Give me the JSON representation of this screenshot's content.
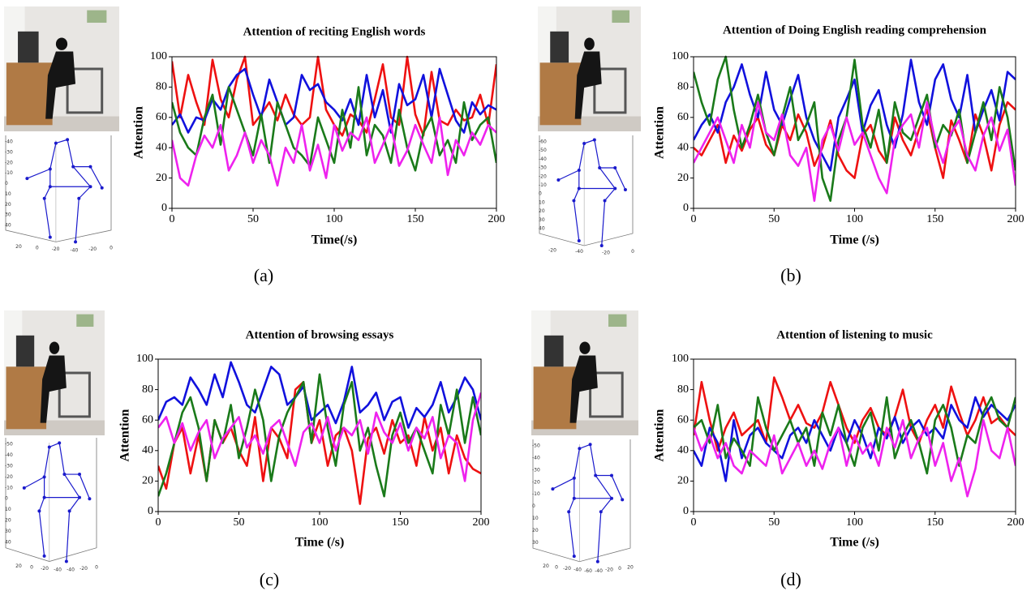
{
  "chart_data": [
    {
      "type": "line",
      "title": "Attention of reciting English words",
      "xlabel": "Time(/s)",
      "ylabel": "Attention",
      "x": [
        0,
        5,
        10,
        15,
        20,
        25,
        30,
        35,
        40,
        45,
        50,
        55,
        60,
        65,
        70,
        75,
        80,
        85,
        90,
        95,
        100,
        105,
        110,
        115,
        120,
        125,
        130,
        135,
        140,
        145,
        150,
        155,
        160,
        165,
        170,
        175,
        180,
        185,
        190,
        195,
        200
      ],
      "xlim": [
        0,
        200
      ],
      "ylim": [
        0,
        100
      ],
      "xticks": [
        0,
        50,
        100,
        150,
        200
      ],
      "yticks": [
        0,
        20,
        40,
        60,
        80,
        100
      ],
      "series": [
        {
          "color": "#ee1111",
          "values": [
            97,
            60,
            88,
            70,
            55,
            98,
            72,
            60,
            85,
            100,
            55,
            62,
            70,
            58,
            75,
            62,
            55,
            60,
            100,
            65,
            55,
            48,
            62,
            58,
            50,
            72,
            95,
            60,
            55,
            100,
            62,
            48,
            90,
            58,
            55,
            65,
            58,
            60,
            75,
            55,
            95
          ]
        },
        {
          "color": "#1111dd",
          "values": [
            55,
            62,
            50,
            60,
            58,
            72,
            65,
            80,
            88,
            92,
            75,
            60,
            85,
            70,
            55,
            60,
            88,
            78,
            82,
            70,
            65,
            58,
            72,
            55,
            88,
            60,
            78,
            50,
            82,
            68,
            72,
            88,
            60,
            92,
            75,
            58,
            50,
            70,
            62,
            68,
            65
          ]
        },
        {
          "color": "#1a7a1a",
          "values": [
            70,
            50,
            40,
            35,
            60,
            75,
            42,
            80,
            65,
            50,
            35,
            62,
            30,
            70,
            55,
            40,
            35,
            28,
            60,
            45,
            30,
            65,
            40,
            80,
            35,
            55,
            48,
            30,
            65,
            40,
            25,
            50,
            60,
            35,
            45,
            30,
            70,
            45,
            55,
            60,
            30
          ]
        },
        {
          "color": "#ee22ee",
          "values": [
            45,
            20,
            15,
            35,
            48,
            40,
            55,
            25,
            35,
            50,
            30,
            45,
            35,
            15,
            40,
            30,
            55,
            25,
            42,
            20,
            55,
            38,
            50,
            45,
            60,
            30,
            42,
            55,
            28,
            38,
            55,
            42,
            30,
            60,
            22,
            45,
            35,
            50,
            42,
            55,
            50
          ]
        }
      ]
    },
    {
      "type": "line",
      "title": "Attention of Doing English reading comprehension",
      "xlabel": "Time (/s)",
      "ylabel": "Attention",
      "x": [
        0,
        5,
        10,
        15,
        20,
        25,
        30,
        35,
        40,
        45,
        50,
        55,
        60,
        65,
        70,
        75,
        80,
        85,
        90,
        95,
        100,
        105,
        110,
        115,
        120,
        125,
        130,
        135,
        140,
        145,
        150,
        155,
        160,
        165,
        170,
        175,
        180,
        185,
        190,
        195,
        200
      ],
      "xlim": [
        0,
        200
      ],
      "ylim": [
        0,
        100
      ],
      "xticks": [
        0,
        50,
        100,
        150,
        200
      ],
      "yticks": [
        0,
        20,
        40,
        60,
        80,
        100
      ],
      "series": [
        {
          "color": "#ee1111",
          "values": [
            40,
            35,
            45,
            55,
            30,
            48,
            38,
            52,
            60,
            42,
            35,
            55,
            45,
            62,
            50,
            28,
            40,
            58,
            35,
            25,
            20,
            48,
            55,
            38,
            30,
            60,
            45,
            35,
            52,
            65,
            40,
            20,
            58,
            45,
            30,
            62,
            48,
            25,
            55,
            70,
            65
          ]
        },
        {
          "color": "#1111dd",
          "values": [
            45,
            55,
            62,
            50,
            70,
            80,
            95,
            75,
            60,
            90,
            65,
            55,
            72,
            88,
            60,
            45,
            35,
            25,
            60,
            72,
            85,
            50,
            68,
            78,
            55,
            40,
            62,
            98,
            70,
            55,
            85,
            95,
            72,
            60,
            88,
            50,
            65,
            78,
            58,
            90,
            85
          ]
        },
        {
          "color": "#1a7a1a",
          "values": [
            90,
            70,
            55,
            85,
            100,
            65,
            40,
            55,
            75,
            50,
            35,
            60,
            80,
            45,
            55,
            70,
            20,
            5,
            45,
            60,
            98,
            55,
            40,
            65,
            30,
            70,
            50,
            45,
            60,
            75,
            40,
            55,
            48,
            65,
            30,
            50,
            70,
            45,
            80,
            60,
            25
          ]
        },
        {
          "color": "#ee22ee",
          "values": [
            30,
            40,
            50,
            60,
            45,
            30,
            55,
            40,
            70,
            50,
            45,
            62,
            35,
            28,
            40,
            5,
            45,
            55,
            38,
            60,
            42,
            50,
            35,
            20,
            10,
            45,
            55,
            62,
            40,
            70,
            45,
            30,
            50,
            58,
            35,
            25,
            48,
            60,
            38,
            52,
            15
          ]
        }
      ]
    },
    {
      "type": "line",
      "title": "Attention of browsing essays",
      "xlabel": "Time (/s)",
      "ylabel": "Attention",
      "x": [
        0,
        5,
        10,
        15,
        20,
        25,
        30,
        35,
        40,
        45,
        50,
        55,
        60,
        65,
        70,
        75,
        80,
        85,
        90,
        95,
        100,
        105,
        110,
        115,
        120,
        125,
        130,
        135,
        140,
        145,
        150,
        155,
        160,
        165,
        170,
        175,
        180,
        185,
        190,
        195,
        200
      ],
      "xlim": [
        0,
        200
      ],
      "ylim": [
        0,
        100
      ],
      "xticks": [
        0,
        50,
        100,
        150,
        200
      ],
      "yticks": [
        0,
        20,
        40,
        60,
        80,
        100
      ],
      "series": [
        {
          "color": "#ee1111",
          "values": [
            30,
            15,
            45,
            55,
            25,
            50,
            20,
            60,
            45,
            55,
            40,
            30,
            62,
            20,
            55,
            48,
            35,
            80,
            85,
            45,
            60,
            30,
            50,
            55,
            40,
            5,
            48,
            55,
            38,
            60,
            45,
            50,
            30,
            62,
            40,
            55,
            25,
            50,
            35,
            28,
            25
          ]
        },
        {
          "color": "#1111dd",
          "values": [
            60,
            72,
            75,
            70,
            88,
            80,
            70,
            90,
            75,
            98,
            85,
            70,
            65,
            80,
            95,
            90,
            70,
            75,
            82,
            60,
            65,
            70,
            58,
            72,
            95,
            65,
            70,
            78,
            60,
            72,
            75,
            55,
            68,
            62,
            70,
            85,
            65,
            75,
            88,
            80,
            60
          ]
        },
        {
          "color": "#1a7a1a",
          "values": [
            10,
            25,
            45,
            65,
            75,
            55,
            20,
            60,
            45,
            70,
            35,
            55,
            80,
            60,
            20,
            50,
            65,
            75,
            85,
            45,
            90,
            55,
            30,
            70,
            85,
            40,
            55,
            30,
            10,
            50,
            65,
            45,
            55,
            40,
            25,
            70,
            50,
            80,
            45,
            75,
            50
          ]
        },
        {
          "color": "#ee22ee",
          "values": [
            55,
            62,
            45,
            58,
            40,
            52,
            60,
            35,
            48,
            55,
            62,
            42,
            50,
            38,
            55,
            60,
            45,
            30,
            52,
            58,
            45,
            62,
            40,
            55,
            50,
            60,
            38,
            65,
            52,
            45,
            58,
            40,
            55,
            48,
            62,
            35,
            50,
            45,
            20,
            60,
            78
          ]
        }
      ]
    },
    {
      "type": "line",
      "title": "Attention of listening to music",
      "xlabel": "Time (/s)",
      "ylabel": "Attention",
      "x": [
        0,
        5,
        10,
        15,
        20,
        25,
        30,
        35,
        40,
        45,
        50,
        55,
        60,
        65,
        70,
        75,
        80,
        85,
        90,
        95,
        100,
        105,
        110,
        115,
        120,
        125,
        130,
        135,
        140,
        145,
        150,
        155,
        160,
        165,
        170,
        175,
        180,
        185,
        190,
        195,
        200
      ],
      "xlim": [
        0,
        200
      ],
      "ylim": [
        0,
        100
      ],
      "xticks": [
        0,
        50,
        100,
        150,
        200
      ],
      "yticks": [
        0,
        20,
        40,
        60,
        80,
        100
      ],
      "series": [
        {
          "color": "#ee1111",
          "values": [
            50,
            85,
            60,
            40,
            55,
            65,
            50,
            55,
            60,
            45,
            88,
            75,
            60,
            70,
            58,
            55,
            65,
            85,
            70,
            55,
            45,
            60,
            68,
            55,
            50,
            62,
            80,
            55,
            45,
            60,
            70,
            55,
            82,
            65,
            50,
            60,
            75,
            58,
            62,
            55,
            50
          ]
        },
        {
          "color": "#1111dd",
          "values": [
            40,
            30,
            55,
            45,
            20,
            60,
            35,
            50,
            55,
            45,
            40,
            35,
            50,
            55,
            45,
            60,
            50,
            40,
            55,
            45,
            60,
            50,
            35,
            55,
            48,
            62,
            45,
            55,
            60,
            50,
            55,
            48,
            70,
            60,
            55,
            75,
            62,
            70,
            65,
            60,
            70
          ]
        },
        {
          "color": "#1a7a1a",
          "values": [
            55,
            60,
            45,
            70,
            35,
            48,
            40,
            30,
            75,
            55,
            40,
            50,
            60,
            45,
            55,
            30,
            65,
            50,
            70,
            45,
            30,
            55,
            65,
            40,
            75,
            35,
            50,
            60,
            45,
            25,
            60,
            70,
            55,
            30,
            50,
            45,
            65,
            75,
            60,
            55,
            75
          ]
        },
        {
          "color": "#ee22ee",
          "values": [
            55,
            40,
            50,
            35,
            45,
            30,
            25,
            40,
            35,
            30,
            50,
            25,
            35,
            45,
            30,
            40,
            28,
            45,
            55,
            30,
            50,
            38,
            45,
            30,
            55,
            42,
            60,
            35,
            48,
            55,
            30,
            45,
            20,
            35,
            10,
            28,
            60,
            40,
            35,
            55,
            30
          ]
        }
      ]
    }
  ],
  "panel_labels": [
    "(a)",
    "(b)",
    "(c)",
    "(d)"
  ],
  "skeleton_ticks": [
    {
      "vertical": [
        -40,
        -30,
        -20,
        -10,
        0,
        10,
        20,
        30,
        40
      ],
      "bottom": [
        20,
        0,
        -20,
        -40,
        -20,
        0
      ]
    },
    {
      "vertical": [
        -60,
        -50,
        -40,
        -30,
        -20,
        -10,
        0,
        10,
        20,
        30,
        40
      ],
      "bottom": [
        -20,
        -40,
        -20,
        0
      ]
    },
    {
      "vertical": [
        -50,
        -40,
        -30,
        -20,
        -10,
        0,
        10,
        20,
        30,
        40
      ],
      "bottom": [
        20,
        0,
        -20,
        -40,
        -40,
        -20,
        0
      ]
    },
    {
      "vertical": [
        -50,
        -40,
        -30,
        -20,
        -10,
        0,
        10,
        20,
        30
      ],
      "bottom": [
        20,
        0,
        -20,
        -40,
        -60,
        -40,
        -20,
        0,
        20
      ]
    }
  ]
}
